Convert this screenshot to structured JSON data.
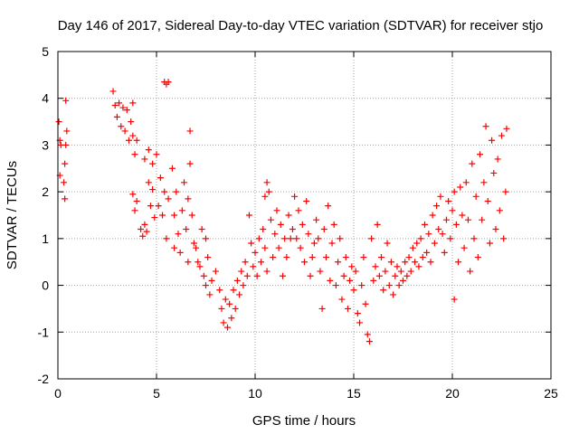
{
  "chart_data": {
    "type": "scatter",
    "title": "Day 146 of 2017, Sidereal Day-to-day VTEC variation (SDTVAR) for receiver stjo",
    "xlabel": "GPS time / hours",
    "ylabel": "SDTVAR / TECUs",
    "xlim": [
      0,
      25
    ],
    "ylim": [
      -2,
      5
    ],
    "xticks": [
      "0",
      "5",
      "10",
      "15",
      "20",
      "25"
    ],
    "yticks": [
      "-2",
      "-1",
      "0",
      "1",
      "2",
      "3",
      "4",
      "5"
    ],
    "grid": true,
    "marker": "plus",
    "color": "#ff0000",
    "series": [
      {
        "name": "SDTVAR",
        "points": [
          [
            0.05,
            3.5
          ],
          [
            0.1,
            3.1
          ],
          [
            0.1,
            2.35
          ],
          [
            0.15,
            3.0
          ],
          [
            0.3,
            2.2
          ],
          [
            0.35,
            1.85
          ],
          [
            0.35,
            2.6
          ],
          [
            0.4,
            3.0
          ],
          [
            0.4,
            3.95
          ],
          [
            0.45,
            3.3
          ],
          [
            2.8,
            4.15
          ],
          [
            2.9,
            3.85
          ],
          [
            3.0,
            3.6
          ],
          [
            3.1,
            3.9
          ],
          [
            3.2,
            3.4
          ],
          [
            3.3,
            3.8
          ],
          [
            3.4,
            3.3
          ],
          [
            3.5,
            3.75
          ],
          [
            3.6,
            3.1
          ],
          [
            3.7,
            3.5
          ],
          [
            3.8,
            3.2
          ],
          [
            3.8,
            3.9
          ],
          [
            3.9,
            2.8
          ],
          [
            4.0,
            3.1
          ],
          [
            3.8,
            1.95
          ],
          [
            3.9,
            1.6
          ],
          [
            4.0,
            1.8
          ],
          [
            4.2,
            1.2
          ],
          [
            4.3,
            1.05
          ],
          [
            4.4,
            1.3
          ],
          [
            4.4,
            2.7
          ],
          [
            4.5,
            1.15
          ],
          [
            4.6,
            2.2
          ],
          [
            4.6,
            2.9
          ],
          [
            4.7,
            1.7
          ],
          [
            4.8,
            2.05
          ],
          [
            4.8,
            2.6
          ],
          [
            4.9,
            1.45
          ],
          [
            5.0,
            2.8
          ],
          [
            5.1,
            1.7
          ],
          [
            5.2,
            2.3
          ],
          [
            5.3,
            1.5
          ],
          [
            5.4,
            2.0
          ],
          [
            5.4,
            4.35
          ],
          [
            5.5,
            4.3
          ],
          [
            5.6,
            4.35
          ],
          [
            5.5,
            1.0
          ],
          [
            5.6,
            1.85
          ],
          [
            5.8,
            2.5
          ],
          [
            5.9,
            1.5
          ],
          [
            5.9,
            0.8
          ],
          [
            6.0,
            2.0
          ],
          [
            6.1,
            1.1
          ],
          [
            6.2,
            0.7
          ],
          [
            6.3,
            1.6
          ],
          [
            6.4,
            2.2
          ],
          [
            6.5,
            1.2
          ],
          [
            6.6,
            1.85
          ],
          [
            6.6,
            0.5
          ],
          [
            6.7,
            2.6
          ],
          [
            6.7,
            3.3
          ],
          [
            6.8,
            1.5
          ],
          [
            6.9,
            0.9
          ],
          [
            7.0,
            0.8
          ],
          [
            7.1,
            0.5
          ],
          [
            7.2,
            0.4
          ],
          [
            7.3,
            1.2
          ],
          [
            7.4,
            0.2
          ],
          [
            7.5,
            0.0
          ],
          [
            7.5,
            1.0
          ],
          [
            7.6,
            0.6
          ],
          [
            7.7,
            -0.2
          ],
          [
            7.8,
            0.1
          ],
          [
            8.0,
            0.3
          ],
          [
            8.2,
            -0.1
          ],
          [
            8.3,
            -0.5
          ],
          [
            8.4,
            -0.8
          ],
          [
            8.5,
            -0.3
          ],
          [
            8.6,
            -0.9
          ],
          [
            8.7,
            -0.4
          ],
          [
            8.8,
            -0.7
          ],
          [
            8.9,
            -0.1
          ],
          [
            9.0,
            -0.5
          ],
          [
            9.1,
            0.1
          ],
          [
            9.2,
            -0.2
          ],
          [
            9.3,
            0.3
          ],
          [
            9.4,
            0.0
          ],
          [
            9.5,
            0.5
          ],
          [
            9.6,
            0.2
          ],
          [
            9.7,
            1.5
          ],
          [
            9.8,
            0.9
          ],
          [
            9.9,
            0.4
          ],
          [
            10.0,
            0.7
          ],
          [
            10.1,
            0.2
          ],
          [
            10.2,
            1.0
          ],
          [
            10.3,
            0.5
          ],
          [
            10.4,
            1.2
          ],
          [
            10.5,
            0.8
          ],
          [
            10.5,
            1.9
          ],
          [
            10.6,
            2.2
          ],
          [
            10.6,
            0.3
          ],
          [
            10.7,
            2.0
          ],
          [
            10.8,
            1.4
          ],
          [
            10.9,
            0.6
          ],
          [
            11.0,
            1.1
          ],
          [
            11.1,
            1.6
          ],
          [
            11.2,
            0.8
          ],
          [
            11.3,
            1.3
          ],
          [
            11.4,
            0.2
          ],
          [
            11.5,
            1.0
          ],
          [
            11.6,
            0.6
          ],
          [
            11.7,
            1.5
          ],
          [
            11.8,
            1.0
          ],
          [
            11.9,
            1.2
          ],
          [
            12.0,
            1.9
          ],
          [
            12.1,
            1.0
          ],
          [
            12.2,
            1.6
          ],
          [
            12.3,
            0.8
          ],
          [
            12.4,
            1.3
          ],
          [
            12.5,
            0.5
          ],
          [
            12.6,
            1.8
          ],
          [
            12.7,
            1.1
          ],
          [
            12.8,
            0.2
          ],
          [
            12.9,
            0.6
          ],
          [
            13.0,
            0.9
          ],
          [
            13.1,
            1.4
          ],
          [
            13.2,
            1.0
          ],
          [
            13.3,
            0.3
          ],
          [
            13.4,
            -0.5
          ],
          [
            13.5,
            1.2
          ],
          [
            13.6,
            0.6
          ],
          [
            13.7,
            1.7
          ],
          [
            13.8,
            0.1
          ],
          [
            13.9,
            0.9
          ],
          [
            14.0,
            1.3
          ],
          [
            14.1,
            0.0
          ],
          [
            14.2,
            0.5
          ],
          [
            14.3,
            1.0
          ],
          [
            14.4,
            -0.3
          ],
          [
            14.5,
            0.2
          ],
          [
            14.6,
            0.6
          ],
          [
            14.7,
            -0.5
          ],
          [
            14.8,
            0.1
          ],
          [
            14.9,
            0.4
          ],
          [
            15.0,
            -0.1
          ],
          [
            15.1,
            0.3
          ],
          [
            15.2,
            -0.6
          ],
          [
            15.3,
            -0.8
          ],
          [
            15.4,
            0.0
          ],
          [
            15.5,
            0.6
          ],
          [
            15.6,
            -0.4
          ],
          [
            15.7,
            -1.05
          ],
          [
            15.8,
            -1.2
          ],
          [
            15.9,
            1.0
          ],
          [
            16.0,
            0.1
          ],
          [
            16.1,
            0.4
          ],
          [
            16.2,
            1.3
          ],
          [
            16.3,
            0.2
          ],
          [
            16.4,
            0.6
          ],
          [
            16.5,
            -0.1
          ],
          [
            16.6,
            0.3
          ],
          [
            16.7,
            0.9
          ],
          [
            16.8,
            0.0
          ],
          [
            16.9,
            0.5
          ],
          [
            17.0,
            -0.2
          ],
          [
            17.1,
            0.2
          ],
          [
            17.2,
            0.4
          ],
          [
            17.3,
            0.0
          ],
          [
            17.4,
            0.3
          ],
          [
            17.5,
            0.1
          ],
          [
            17.6,
            0.5
          ],
          [
            17.7,
            0.2
          ],
          [
            17.8,
            0.6
          ],
          [
            17.9,
            0.3
          ],
          [
            18.0,
            0.8
          ],
          [
            18.1,
            0.5
          ],
          [
            18.2,
            0.9
          ],
          [
            18.3,
            0.4
          ],
          [
            18.4,
            1.0
          ],
          [
            18.5,
            0.6
          ],
          [
            18.6,
            1.3
          ],
          [
            18.7,
            0.7
          ],
          [
            18.8,
            1.1
          ],
          [
            18.9,
            0.5
          ],
          [
            19.0,
            1.5
          ],
          [
            19.1,
            0.9
          ],
          [
            19.2,
            1.7
          ],
          [
            19.3,
            1.2
          ],
          [
            19.4,
            1.9
          ],
          [
            19.5,
            1.1
          ],
          [
            19.6,
            0.7
          ],
          [
            19.7,
            1.4
          ],
          [
            19.8,
            1.8
          ],
          [
            19.9,
            1.0
          ],
          [
            20.0,
            1.6
          ],
          [
            20.1,
            2.0
          ],
          [
            20.1,
            -0.3
          ],
          [
            20.2,
            1.3
          ],
          [
            20.3,
            0.5
          ],
          [
            20.4,
            2.1
          ],
          [
            20.5,
            1.5
          ],
          [
            20.6,
            0.8
          ],
          [
            20.7,
            2.2
          ],
          [
            20.8,
            1.4
          ],
          [
            20.9,
            0.3
          ],
          [
            21.0,
            2.6
          ],
          [
            21.1,
            1.0
          ],
          [
            21.2,
            1.9
          ],
          [
            21.3,
            0.6
          ],
          [
            21.4,
            2.8
          ],
          [
            21.5,
            1.4
          ],
          [
            21.6,
            2.2
          ],
          [
            21.7,
            3.4
          ],
          [
            21.8,
            1.8
          ],
          [
            21.9,
            0.9
          ],
          [
            22.0,
            3.1
          ],
          [
            22.1,
            2.4
          ],
          [
            22.2,
            1.2
          ],
          [
            22.3,
            2.7
          ],
          [
            22.4,
            1.6
          ],
          [
            22.5,
            3.2
          ],
          [
            22.6,
            1.0
          ],
          [
            22.7,
            2.0
          ],
          [
            22.75,
            3.35
          ]
        ]
      }
    ]
  }
}
